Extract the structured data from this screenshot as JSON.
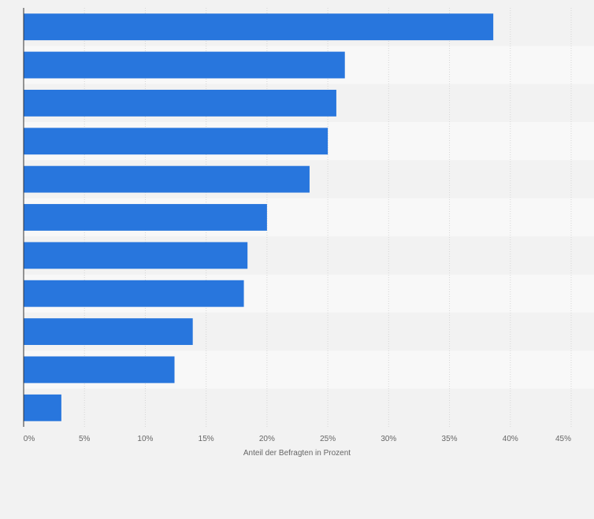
{
  "chart_data": {
    "type": "bar",
    "orientation": "horizontal",
    "categories": [
      "",
      "",
      "",
      "",
      "",
      "",
      "",
      "",
      "",
      "",
      ""
    ],
    "values": [
      38.6,
      26.4,
      25.7,
      25.0,
      23.5,
      20.0,
      18.4,
      18.1,
      13.9,
      12.4,
      3.1
    ],
    "xlabel": "Anteil der Befragten in Prozent",
    "ylabel": "",
    "xlim": [
      0,
      45
    ],
    "xticks": [
      0,
      5,
      10,
      15,
      20,
      25,
      30,
      35,
      40,
      45
    ],
    "xtick_labels": [
      "0%",
      "5%",
      "10%",
      "15%",
      "20%",
      "25%",
      "30%",
      "35%",
      "40%",
      "45%"
    ],
    "grid": "vertical dashed",
    "bar_color": "#2876dd",
    "band_colors": [
      "#f2f2f2",
      "#f8f8f8"
    ],
    "legend": "none"
  }
}
